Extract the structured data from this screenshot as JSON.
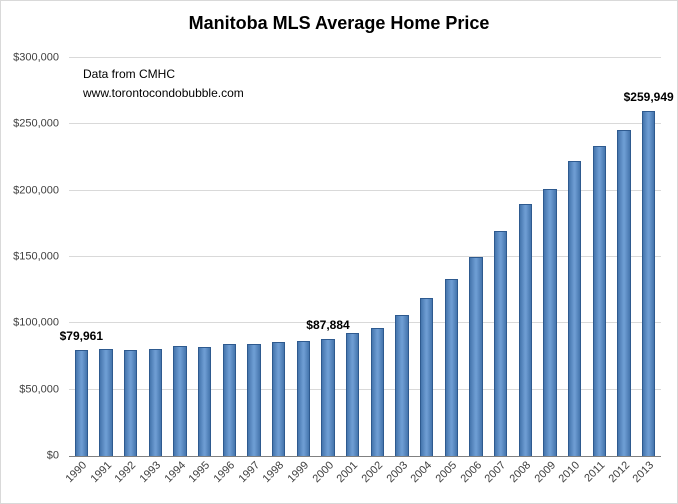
{
  "chart": {
    "title": "Manitoba MLS Average Home Price",
    "note_line1": "Data from CMHC",
    "note_line2": "www.torontocondobubble.com"
  },
  "chart_data": {
    "type": "bar",
    "title": "Manitoba MLS Average Home Price",
    "categories": [
      "1990",
      "1991",
      "1992",
      "1993",
      "1994",
      "1995",
      "1996",
      "1997",
      "1998",
      "1999",
      "2000",
      "2001",
      "2002",
      "2003",
      "2004",
      "2005",
      "2006",
      "2007",
      "2008",
      "2009",
      "2010",
      "2011",
      "2012",
      "2013"
    ],
    "values": [
      79961,
      80500,
      80000,
      80700,
      82800,
      81900,
      84500,
      84800,
      86200,
      86600,
      87884,
      93000,
      96400,
      106500,
      119000,
      133500,
      150000,
      169500,
      190300,
      201300,
      222000,
      234000,
      246000,
      259949
    ],
    "xlabel": "",
    "ylabel": "",
    "ylim": [
      0,
      300000
    ],
    "ytick_step": 50000,
    "ytick_labels": [
      "$0",
      "$50,000",
      "$100,000",
      "$150,000",
      "$200,000",
      "$250,000",
      "$300,000"
    ],
    "grid": true,
    "legend": "none",
    "bar_color": "#4f81bd",
    "bar_border": "#2e5a8f",
    "annotations": [
      {
        "index": 0,
        "label": "$79,961"
      },
      {
        "index": 10,
        "label": "$87,884"
      },
      {
        "index": 23,
        "label": "$259,949"
      }
    ]
  }
}
